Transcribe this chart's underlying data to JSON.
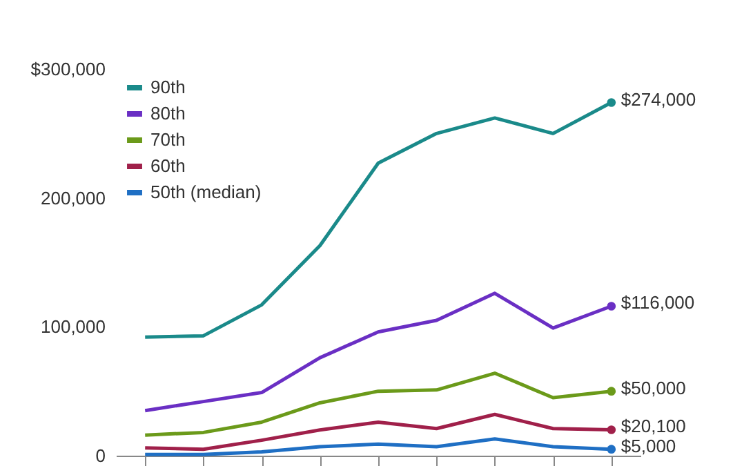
{
  "chart_data": {
    "type": "line",
    "categories": [
      null,
      null,
      null,
      null,
      null,
      null,
      null,
      null,
      null
    ],
    "ylim": [
      0,
      300000
    ],
    "yticks": [
      {
        "value": 0,
        "label": "0"
      },
      {
        "value": 100000,
        "label": "100,000"
      },
      {
        "value": 200000,
        "label": "200,000"
      },
      {
        "value": 300000,
        "label": "$300,000"
      }
    ],
    "grid": false,
    "legend": "top left",
    "line_style": "solid",
    "series": [
      {
        "name": "90th",
        "color": "#1a8a8a",
        "values": [
          92000,
          93000,
          117000,
          163000,
          227000,
          250000,
          262000,
          250000,
          274000
        ],
        "value_labels": [
          null,
          null,
          null,
          null,
          null,
          null,
          null,
          null,
          "$274,000"
        ]
      },
      {
        "name": "80th",
        "color": "#6a2fc4",
        "values": [
          35000,
          42000,
          49000,
          76000,
          96000,
          105000,
          126000,
          99000,
          116000
        ],
        "value_labels": [
          null,
          null,
          null,
          null,
          null,
          null,
          null,
          null,
          "$116,000"
        ]
      },
      {
        "name": "70th",
        "color": "#6b9a1a",
        "values": [
          16000,
          18000,
          26000,
          41000,
          50000,
          51000,
          64000,
          45000,
          50000
        ],
        "value_labels": [
          null,
          null,
          null,
          null,
          null,
          null,
          null,
          null,
          "$50,000"
        ]
      },
      {
        "name": "60th",
        "color": "#a0204a",
        "values": [
          6000,
          5000,
          12000,
          20000,
          26000,
          21000,
          32000,
          21000,
          20100
        ],
        "value_labels": [
          null,
          null,
          null,
          null,
          null,
          null,
          null,
          null,
          "$20,100"
        ]
      },
      {
        "name": "50th (median)",
        "color": "#1f6fc4",
        "values": [
          1000,
          1000,
          3000,
          7000,
          9000,
          7000,
          13000,
          7000,
          5000
        ],
        "value_labels": [
          null,
          null,
          null,
          null,
          null,
          null,
          null,
          null,
          "$5,000"
        ]
      }
    ]
  }
}
